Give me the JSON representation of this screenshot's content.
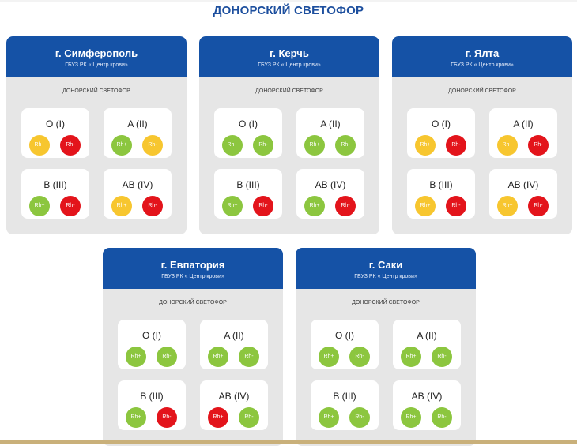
{
  "title": "ДОНОРСКИЙ СВЕТОФОР",
  "colors": {
    "green": "#8cc63f",
    "yellow": "#f7c62f",
    "red": "#e3141b",
    "header_blue": "#1552a6",
    "title_blue": "#1d4f9e"
  },
  "cards": [
    {
      "city": "г. Симферополь",
      "org": "ГБУЗ РК « Центр крови»",
      "label": "ДОНОРСКИЙ СВЕТОФОР",
      "groups": [
        {
          "name": "O (I)",
          "pos": {
            "text": "Rh+",
            "color": "yellow"
          },
          "neg": {
            "text": "Rh-",
            "color": "red"
          }
        },
        {
          "name": "A (II)",
          "pos": {
            "text": "Rh+",
            "color": "green"
          },
          "neg": {
            "text": "Rh-",
            "color": "yellow"
          }
        },
        {
          "name": "B (III)",
          "pos": {
            "text": "Rh+",
            "color": "green"
          },
          "neg": {
            "text": "Rh-",
            "color": "red"
          }
        },
        {
          "name": "AB (IV)",
          "pos": {
            "text": "Rh+",
            "color": "yellow"
          },
          "neg": {
            "text": "Rh-",
            "color": "red"
          }
        }
      ]
    },
    {
      "city": "г. Керчь",
      "org": "ГБУЗ РК « Центр крови»",
      "label": "ДОНОРСКИЙ СВЕТОФОР",
      "groups": [
        {
          "name": "O (I)",
          "pos": {
            "text": "Rh+",
            "color": "green"
          },
          "neg": {
            "text": "Rh-",
            "color": "green"
          }
        },
        {
          "name": "A (II)",
          "pos": {
            "text": "Rh+",
            "color": "green"
          },
          "neg": {
            "text": "Rh-",
            "color": "green"
          }
        },
        {
          "name": "B (III)",
          "pos": {
            "text": "Rh+",
            "color": "green"
          },
          "neg": {
            "text": "Rh-",
            "color": "red"
          }
        },
        {
          "name": "AB (IV)",
          "pos": {
            "text": "Rh+",
            "color": "green"
          },
          "neg": {
            "text": "Rh-",
            "color": "red"
          }
        }
      ]
    },
    {
      "city": "г. Ялта",
      "org": "ГБУЗ РК « Центр крови»",
      "label": "ДОНОРСКИЙ СВЕТОФОР",
      "groups": [
        {
          "name": "O (I)",
          "pos": {
            "text": "Rh+",
            "color": "yellow"
          },
          "neg": {
            "text": "Rh-",
            "color": "red"
          }
        },
        {
          "name": "A (II)",
          "pos": {
            "text": "Rh+",
            "color": "yellow"
          },
          "neg": {
            "text": "Rh-",
            "color": "red"
          }
        },
        {
          "name": "B (III)",
          "pos": {
            "text": "Rh+",
            "color": "yellow"
          },
          "neg": {
            "text": "Rh-",
            "color": "red"
          }
        },
        {
          "name": "AB (IV)",
          "pos": {
            "text": "Rh+",
            "color": "yellow"
          },
          "neg": {
            "text": "Rh-",
            "color": "red"
          }
        }
      ]
    },
    {
      "city": "г. Евпатория",
      "org": "ГБУЗ РК « Центр крови»",
      "label": "ДОНОРСКИЙ СВЕТОФОР",
      "groups": [
        {
          "name": "O (I)",
          "pos": {
            "text": "Rh+",
            "color": "green"
          },
          "neg": {
            "text": "Rh-",
            "color": "green"
          }
        },
        {
          "name": "A (II)",
          "pos": {
            "text": "Rh+",
            "color": "green"
          },
          "neg": {
            "text": "Rh-",
            "color": "green"
          }
        },
        {
          "name": "B (III)",
          "pos": {
            "text": "Rh+",
            "color": "green"
          },
          "neg": {
            "text": "Rh-",
            "color": "red"
          }
        },
        {
          "name": "AB (IV)",
          "pos": {
            "text": "Rh+",
            "color": "red"
          },
          "neg": {
            "text": "Rh-",
            "color": "green"
          }
        }
      ]
    },
    {
      "city": "г. Саки",
      "org": "ГБУЗ РК « Центр крови»",
      "label": "ДОНОРСКИЙ СВЕТОФОР",
      "groups": [
        {
          "name": "O (I)",
          "pos": {
            "text": "Rh+",
            "color": "green"
          },
          "neg": {
            "text": "Rh-",
            "color": "green"
          }
        },
        {
          "name": "A (II)",
          "pos": {
            "text": "Rh+",
            "color": "green"
          },
          "neg": {
            "text": "Rh-",
            "color": "green"
          }
        },
        {
          "name": "B (III)",
          "pos": {
            "text": "Rh+",
            "color": "green"
          },
          "neg": {
            "text": "Rh-",
            "color": "green"
          }
        },
        {
          "name": "AB (IV)",
          "pos": {
            "text": "Rh+",
            "color": "green"
          },
          "neg": {
            "text": "Rh-",
            "color": "green"
          }
        }
      ]
    }
  ]
}
